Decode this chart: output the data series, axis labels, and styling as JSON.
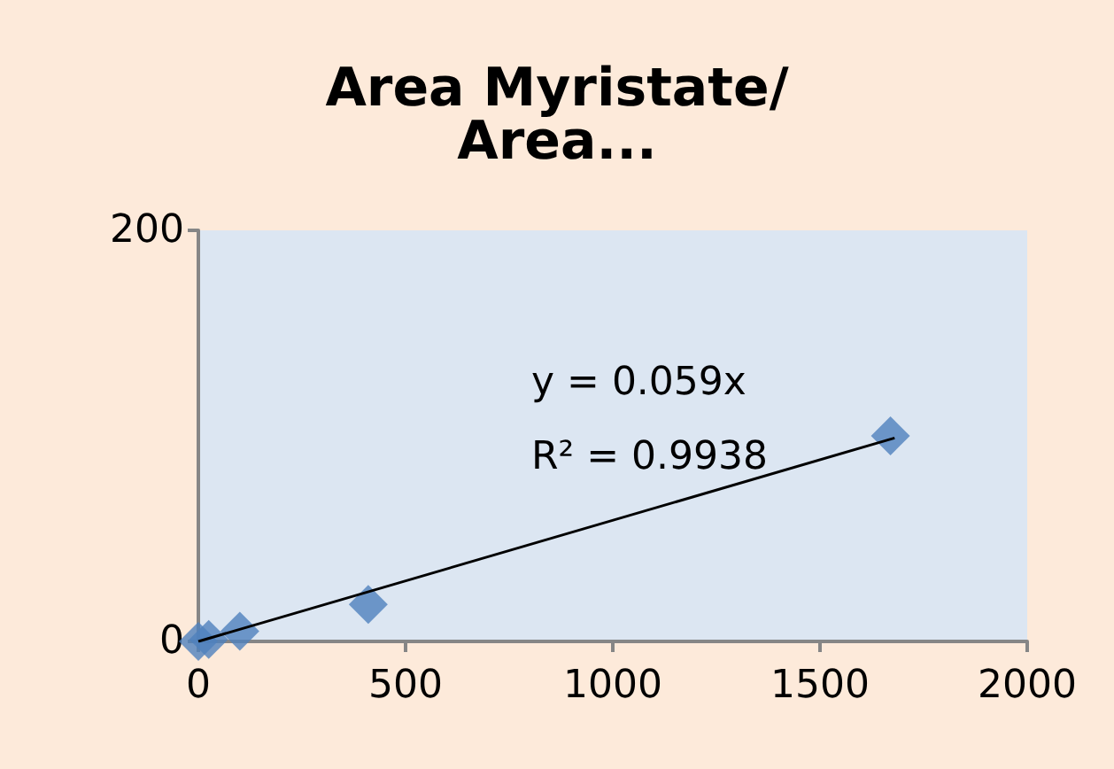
{
  "chart_data": {
    "type": "scatter",
    "title": "Area Myristate/Area...",
    "x": [
      0,
      25,
      100,
      410,
      1670
    ],
    "series": [
      {
        "color": "#4f81bd",
        "values": [
          0,
          1,
          5,
          18,
          100
        ]
      },
      {
        "type": "line",
        "color": "#000000",
        "x": [
          0,
          1680
        ],
        "values": [
          0,
          99
        ],
        "marker": "none"
      }
    ],
    "marker": "diamond",
    "xlim": [
      0,
      2000
    ],
    "xticks": [
      0,
      500,
      1000,
      1500,
      2000
    ],
    "ylim": [
      0,
      200
    ],
    "yticks": [
      0,
      200
    ],
    "grid": false,
    "annotations": [
      "y = 0.059x",
      "R² = 0.9938"
    ]
  }
}
